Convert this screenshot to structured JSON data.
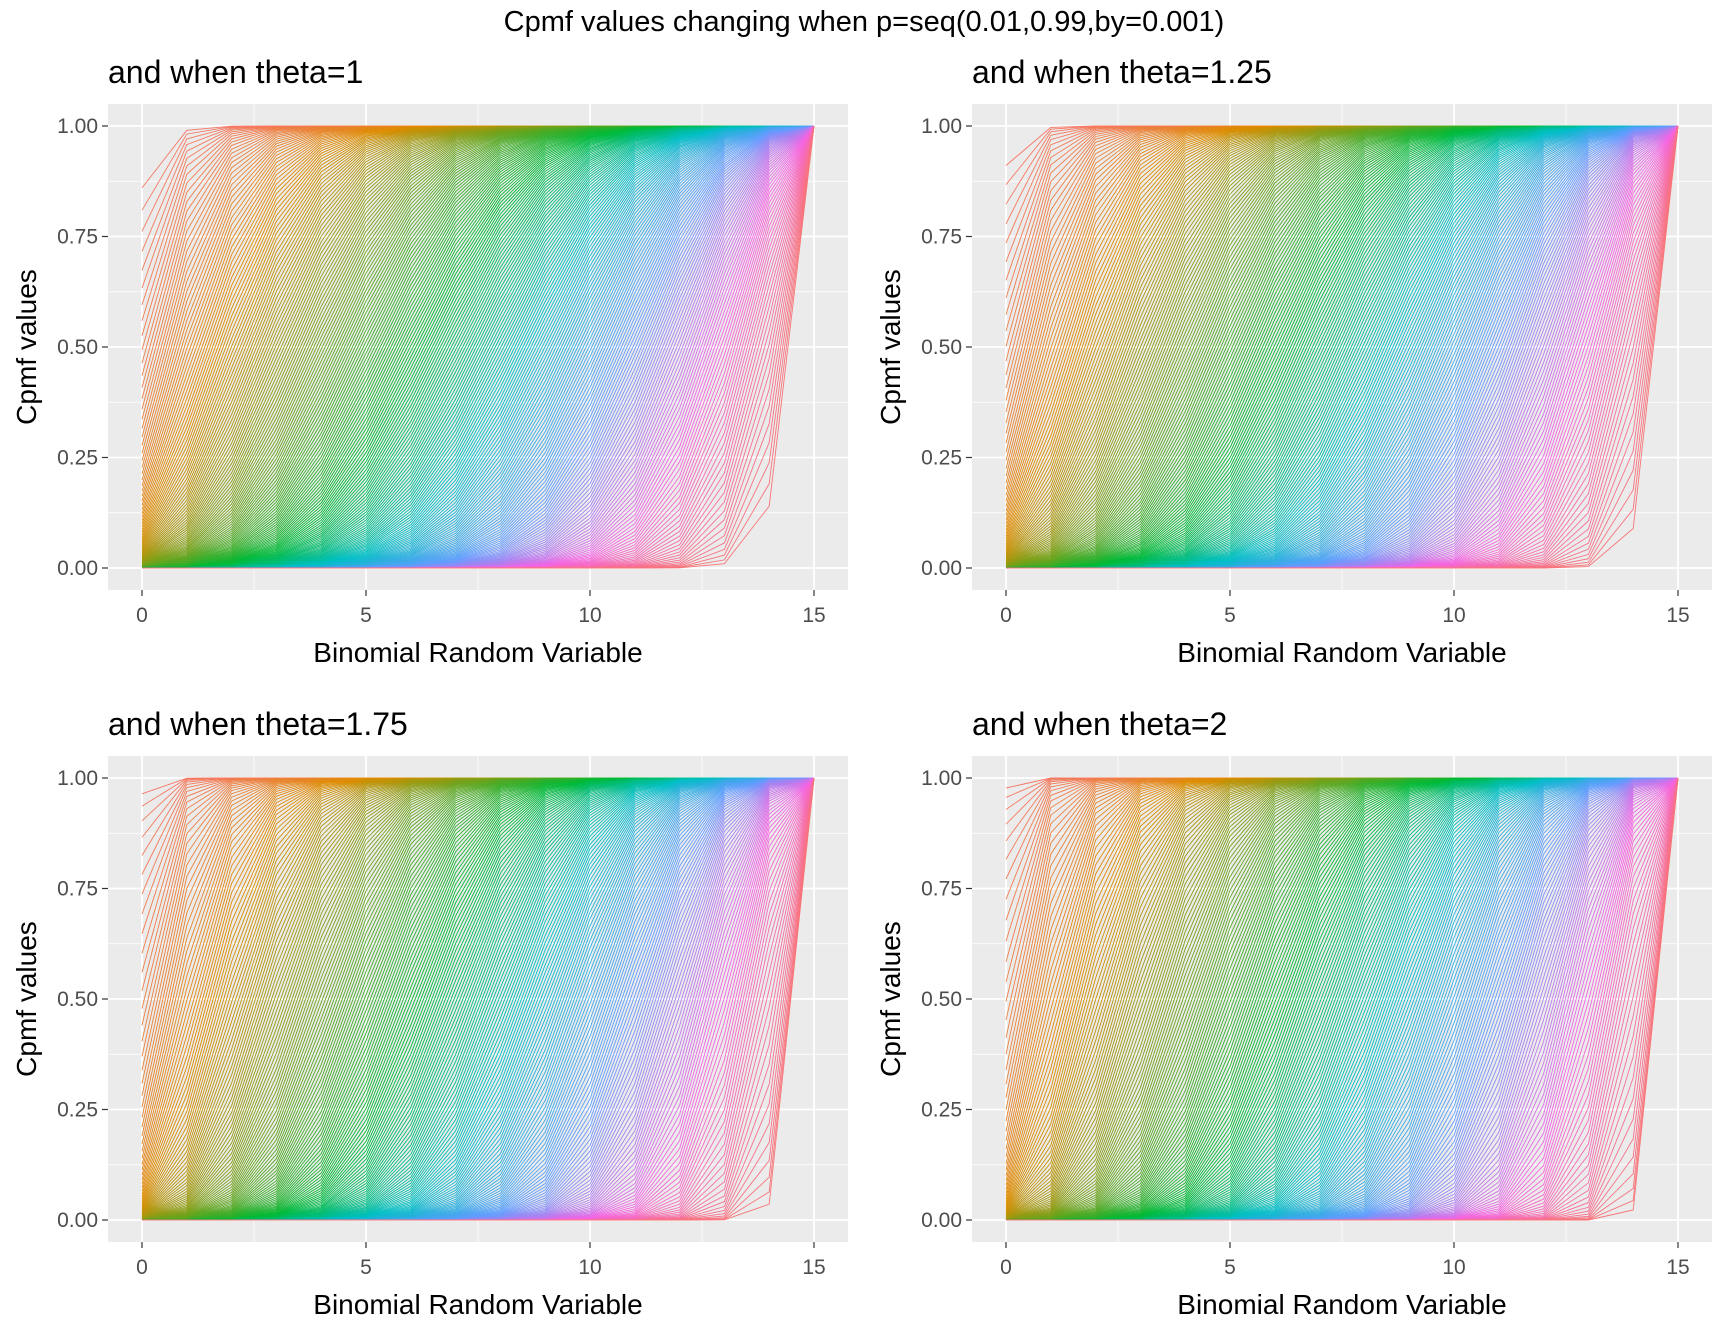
{
  "figure": {
    "title": "Cpmf values changing when p=seq(0.01,0.99,by=0.001)"
  },
  "panels": [
    {
      "title": "and when theta=1",
      "theta": 1
    },
    {
      "title": "and when theta=1.25",
      "theta": 1.25
    },
    {
      "title": "and when theta=1.75",
      "theta": 1.75
    },
    {
      "title": "and when theta=2",
      "theta": 2
    }
  ],
  "chart_data": {
    "type": "line",
    "description_source": "CMF-type cumulative curves of a binomial-based random variable with n=15, one line per p in seq(0.01,0.99,by=0.001), colored by p (hue palette)",
    "n": 15,
    "p_sequence": {
      "from": 0.01,
      "to": 0.99,
      "by": 0.001
    },
    "x": [
      0,
      1,
      2,
      3,
      4,
      5,
      6,
      7,
      8,
      9,
      10,
      11,
      12,
      13,
      14,
      15
    ],
    "xlabel": "Binomial Random Variable",
    "ylabel": "Cpmf values",
    "xlim": [
      0,
      15
    ],
    "ylim": [
      0,
      1
    ],
    "x_ticks": [
      "0",
      "5",
      "10",
      "15"
    ],
    "y_ticks": [
      "0.00",
      "0.25",
      "0.50",
      "0.75",
      "1.00"
    ],
    "grid": true,
    "legend": "none",
    "panel_background": "#ebebeb",
    "grid_color": "#ffffff"
  }
}
